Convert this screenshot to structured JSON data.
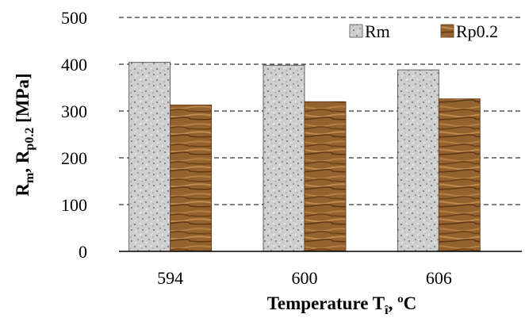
{
  "chart_data": {
    "type": "bar",
    "categories": [
      "594",
      "600",
      "606"
    ],
    "series": [
      {
        "name": "Rm",
        "values": [
          404,
          398,
          388
        ],
        "color": "#c9c9c9",
        "pattern": "granite"
      },
      {
        "name": "Rp0.2",
        "values": [
          313,
          320,
          326
        ],
        "color": "#8a5a2e",
        "pattern": "wood"
      }
    ],
    "ylim": [
      0,
      500
    ],
    "yticks": [
      0,
      100,
      200,
      300,
      400,
      500
    ],
    "grid": true,
    "grid_style": "dashed",
    "legend_position": "top-right",
    "ylabel": {
      "main1": "R",
      "sub1": "m",
      "mid": ", R",
      "sub2": "p0.2",
      "tail": " [MPa]"
    },
    "xlabel": {
      "main": "Temperature T",
      "sub": "î",
      "tail": ", ºC"
    }
  }
}
